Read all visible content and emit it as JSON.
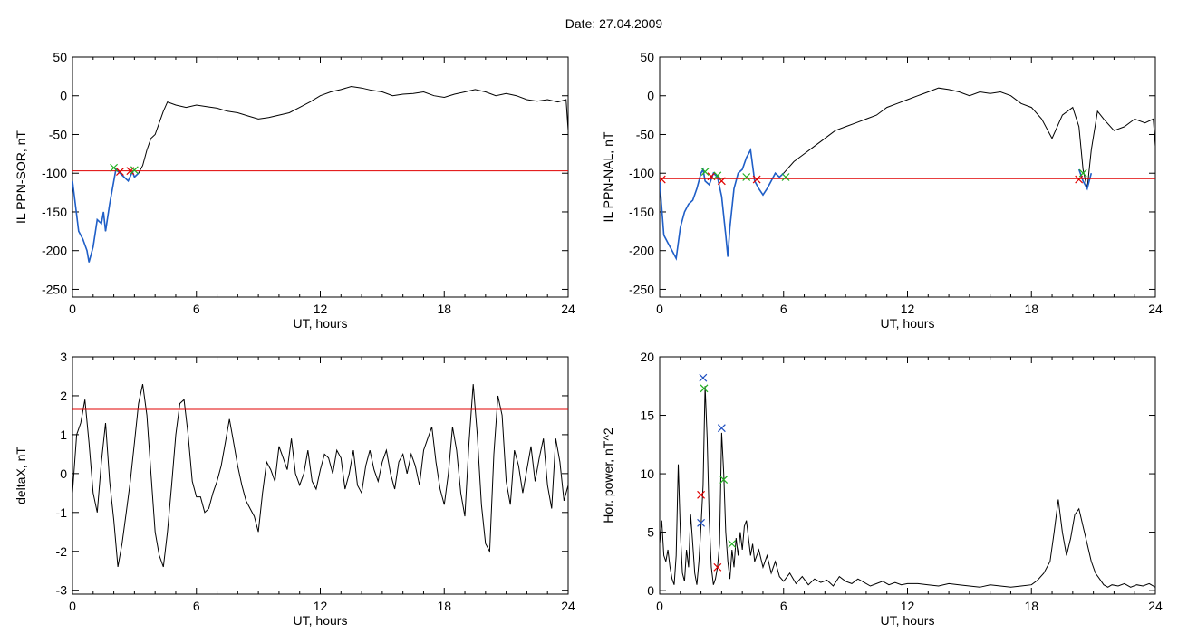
{
  "page": {
    "title": "Date:  27.04.2009"
  },
  "colors": {
    "trace": "#000000",
    "fit": "#1f5fc8",
    "threshold": "#e00000",
    "marker_red": "#e00000",
    "marker_green": "#20b020",
    "marker_blue": "#2050c0"
  },
  "chart_data": [
    {
      "type": "line",
      "title": "",
      "xlabel": "UT, hours",
      "ylabel": "IL PPN-SOR, nT",
      "xlim": [
        0,
        24
      ],
      "ylim": [
        -260,
        50
      ],
      "xticks": [
        0,
        6,
        12,
        18,
        24
      ],
      "yticks": [
        -250,
        -200,
        -150,
        -100,
        -50,
        0,
        50
      ],
      "grid": false,
      "threshold": -97,
      "series": [
        {
          "role": "trace",
          "x": [
            0,
            0.3,
            0.5,
            0.7,
            0.8,
            1.0,
            1.2,
            1.4,
            1.5,
            1.6,
            1.8,
            2.0,
            2.1,
            2.3,
            2.5,
            2.7,
            2.9,
            3.0,
            3.2,
            3.4,
            3.6,
            3.8,
            4.0,
            4.2,
            4.4,
            4.6,
            5.0,
            5.5,
            6.0,
            6.5,
            7.0,
            7.5,
            8.0,
            8.5,
            9.0,
            9.5,
            10.0,
            10.5,
            11.0,
            11.5,
            12.0,
            12.5,
            13.0,
            13.5,
            14.0,
            14.5,
            15.0,
            15.5,
            16.0,
            16.5,
            17.0,
            17.5,
            18.0,
            18.5,
            19.0,
            19.5,
            20.0,
            20.5,
            21.0,
            21.5,
            22.0,
            22.5,
            23.0,
            23.5,
            23.9,
            24
          ],
          "y": [
            -110,
            -175,
            -185,
            -200,
            -215,
            -195,
            -160,
            -165,
            -150,
            -175,
            -140,
            -110,
            -95,
            -100,
            -105,
            -110,
            -98,
            -105,
            -100,
            -90,
            -70,
            -55,
            -50,
            -35,
            -20,
            -8,
            -12,
            -15,
            -12,
            -14,
            -16,
            -20,
            -22,
            -26,
            -30,
            -28,
            -25,
            -22,
            -15,
            -8,
            0,
            5,
            8,
            12,
            10,
            7,
            5,
            0,
            2,
            3,
            5,
            0,
            -2,
            2,
            5,
            8,
            5,
            0,
            3,
            0,
            -5,
            -7,
            -5,
            -8,
            -5,
            -45
          ]
        },
        {
          "role": "fit",
          "x": [
            0,
            0.3,
            0.5,
            0.7,
            0.8,
            1.0,
            1.2,
            1.4,
            1.5,
            1.6,
            1.8,
            2.0,
            2.1,
            2.3,
            2.5,
            2.7,
            2.9,
            3.0,
            3.2
          ],
          "y": [
            -110,
            -175,
            -185,
            -200,
            -215,
            -195,
            -160,
            -165,
            -150,
            -175,
            -140,
            -110,
            -95,
            -100,
            -105,
            -110,
            -98,
            -105,
            -100
          ]
        }
      ],
      "markers": [
        {
          "x": 2.0,
          "y": -93,
          "color": "green"
        },
        {
          "x": 2.3,
          "y": -98,
          "color": "red"
        },
        {
          "x": 2.8,
          "y": -97,
          "color": "red"
        },
        {
          "x": 3.0,
          "y": -96,
          "color": "green"
        }
      ]
    },
    {
      "type": "line",
      "title": "",
      "xlabel": "UT, hours",
      "ylabel": "IL PPN-NAL, nT",
      "xlim": [
        0,
        24
      ],
      "ylim": [
        -260,
        50
      ],
      "xticks": [
        0,
        6,
        12,
        18,
        24
      ],
      "yticks": [
        -250,
        -200,
        -150,
        -100,
        -50,
        0,
        50
      ],
      "grid": false,
      "threshold": -107,
      "series": [
        {
          "role": "trace",
          "x": [
            0,
            0.2,
            0.4,
            0.6,
            0.8,
            1.0,
            1.2,
            1.4,
            1.6,
            1.8,
            2.0,
            2.1,
            2.2,
            2.4,
            2.6,
            2.8,
            3.0,
            3.2,
            3.3,
            3.4,
            3.6,
            3.8,
            4.0,
            4.2,
            4.4,
            4.6,
            4.8,
            5.0,
            5.2,
            5.4,
            5.6,
            5.8,
            6.0,
            6.5,
            7.0,
            7.5,
            8.0,
            8.5,
            9.0,
            9.5,
            10.0,
            10.5,
            11.0,
            11.5,
            12.0,
            12.5,
            13.0,
            13.5,
            14.0,
            14.5,
            15.0,
            15.5,
            16.0,
            16.5,
            17.0,
            17.5,
            18.0,
            18.5,
            19.0,
            19.5,
            20.0,
            20.3,
            20.5,
            20.7,
            20.9,
            21.2,
            21.5,
            22.0,
            22.5,
            23.0,
            23.5,
            23.9,
            24
          ],
          "y": [
            -110,
            -180,
            -190,
            -200,
            -210,
            -170,
            -150,
            -140,
            -135,
            -120,
            -100,
            -95,
            -110,
            -115,
            -100,
            -105,
            -130,
            -180,
            -208,
            -170,
            -120,
            -100,
            -95,
            -80,
            -70,
            -110,
            -120,
            -128,
            -120,
            -110,
            -100,
            -105,
            -100,
            -85,
            -75,
            -65,
            -55,
            -45,
            -40,
            -35,
            -30,
            -25,
            -15,
            -10,
            -5,
            0,
            5,
            10,
            8,
            5,
            0,
            5,
            3,
            5,
            0,
            -10,
            -15,
            -30,
            -55,
            -25,
            -15,
            -40,
            -95,
            -120,
            -70,
            -20,
            -30,
            -45,
            -40,
            -30,
            -35,
            -30,
            -65
          ]
        },
        {
          "role": "fit",
          "x": [
            0,
            0.2,
            0.4,
            0.6,
            0.8,
            1.0,
            1.2,
            1.4,
            1.6,
            1.8,
            2.0,
            2.1,
            2.2,
            2.4,
            2.6,
            2.8,
            3.0,
            3.2,
            3.3,
            3.4,
            3.6,
            3.8,
            4.0,
            4.2,
            4.4,
            4.6,
            4.8,
            5.0,
            5.2,
            5.4,
            5.6,
            5.8,
            6.0
          ],
          "y": [
            -110,
            -180,
            -190,
            -200,
            -210,
            -170,
            -150,
            -140,
            -135,
            -120,
            -100,
            -95,
            -110,
            -115,
            -100,
            -105,
            -130,
            -180,
            -208,
            -170,
            -120,
            -100,
            -95,
            -80,
            -70,
            -110,
            -120,
            -128,
            -120,
            -110,
            -100,
            -105,
            -100
          ]
        },
        {
          "role": "fit",
          "x": [
            20.3,
            20.5,
            20.7,
            20.9
          ],
          "y": [
            -95,
            -110,
            -120,
            -100
          ]
        }
      ],
      "markers": [
        {
          "x": 0.1,
          "y": -108,
          "color": "red"
        },
        {
          "x": 2.2,
          "y": -98,
          "color": "green"
        },
        {
          "x": 2.5,
          "y": -104,
          "color": "red"
        },
        {
          "x": 2.8,
          "y": -103,
          "color": "green"
        },
        {
          "x": 3.0,
          "y": -110,
          "color": "red"
        },
        {
          "x": 4.2,
          "y": -105,
          "color": "green"
        },
        {
          "x": 4.7,
          "y": -108,
          "color": "red"
        },
        {
          "x": 6.1,
          "y": -105,
          "color": "green"
        },
        {
          "x": 20.3,
          "y": -108,
          "color": "red"
        },
        {
          "x": 20.5,
          "y": -100,
          "color": "green"
        }
      ]
    },
    {
      "type": "line",
      "title": "",
      "xlabel": "UT, hours",
      "ylabel": "deltaX, nT",
      "xlim": [
        0,
        24
      ],
      "ylim": [
        -3.1,
        3
      ],
      "xticks": [
        0,
        6,
        12,
        18,
        24
      ],
      "yticks": [
        -3,
        -2,
        -1,
        0,
        1,
        2,
        3
      ],
      "grid": false,
      "threshold": 1.65,
      "series": [
        {
          "role": "trace",
          "x": [
            0,
            0.2,
            0.4,
            0.6,
            0.8,
            1.0,
            1.2,
            1.4,
            1.6,
            1.8,
            2.0,
            2.2,
            2.4,
            2.6,
            2.8,
            3.0,
            3.2,
            3.4,
            3.6,
            3.8,
            4.0,
            4.2,
            4.4,
            4.6,
            4.8,
            5.0,
            5.2,
            5.4,
            5.6,
            5.8,
            6.0,
            6.2,
            6.4,
            6.6,
            6.8,
            7.0,
            7.2,
            7.4,
            7.6,
            7.8,
            8.0,
            8.2,
            8.4,
            8.6,
            8.8,
            9.0,
            9.2,
            9.4,
            9.6,
            9.8,
            10.0,
            10.2,
            10.4,
            10.6,
            10.8,
            11.0,
            11.2,
            11.4,
            11.6,
            11.8,
            12.0,
            12.2,
            12.4,
            12.6,
            12.8,
            13.0,
            13.2,
            13.4,
            13.6,
            13.8,
            14.0,
            14.2,
            14.4,
            14.6,
            14.8,
            15.0,
            15.2,
            15.4,
            15.6,
            15.8,
            16.0,
            16.2,
            16.4,
            16.6,
            16.8,
            17.0,
            17.2,
            17.4,
            17.6,
            17.8,
            18.0,
            18.2,
            18.4,
            18.6,
            18.8,
            19.0,
            19.2,
            19.4,
            19.6,
            19.8,
            20.0,
            20.2,
            20.4,
            20.6,
            20.8,
            21.0,
            21.2,
            21.4,
            21.6,
            21.8,
            22.0,
            22.2,
            22.4,
            22.6,
            22.8,
            23.0,
            23.2,
            23.4,
            23.6,
            23.8,
            24.0
          ],
          "y": [
            -0.5,
            1.0,
            1.3,
            1.9,
            0.8,
            -0.5,
            -1.0,
            0.3,
            1.3,
            -0.2,
            -1.2,
            -2.4,
            -1.8,
            -1.0,
            -0.2,
            0.8,
            1.8,
            2.3,
            1.5,
            0.0,
            -1.5,
            -2.1,
            -2.4,
            -1.5,
            -0.3,
            1.0,
            1.8,
            1.9,
            1.0,
            -0.2,
            -0.6,
            -0.6,
            -1.0,
            -0.9,
            -0.5,
            -0.2,
            0.2,
            0.8,
            1.4,
            0.8,
            0.2,
            -0.3,
            -0.7,
            -0.9,
            -1.1,
            -1.5,
            -0.5,
            0.3,
            0.1,
            -0.2,
            0.7,
            0.4,
            0.1,
            0.9,
            0.0,
            -0.3,
            0.0,
            0.6,
            -0.2,
            -0.4,
            0.1,
            0.5,
            0.4,
            0.0,
            0.6,
            0.4,
            -0.4,
            0.0,
            0.6,
            -0.3,
            -0.5,
            0.2,
            0.6,
            0.1,
            -0.2,
            0.3,
            0.6,
            0.0,
            -0.4,
            0.3,
            0.5,
            0.0,
            0.5,
            0.2,
            -0.3,
            0.6,
            0.9,
            1.2,
            0.3,
            -0.4,
            -0.8,
            0.0,
            1.2,
            0.6,
            -0.5,
            -1.1,
            0.8,
            2.3,
            1.0,
            -0.8,
            -1.8,
            -2.0,
            0.5,
            2.0,
            1.5,
            -0.2,
            -0.8,
            0.6,
            0.2,
            -0.5,
            0.1,
            0.7,
            -0.2,
            0.4,
            0.9,
            -0.3,
            -0.9,
            0.9,
            0.3,
            -0.7,
            -0.3
          ]
        }
      ],
      "markers": []
    },
    {
      "type": "line",
      "title": "",
      "xlabel": "UT, hours",
      "ylabel": "Hor. power, nT^2",
      "xlim": [
        0,
        24
      ],
      "ylim": [
        -0.3,
        20
      ],
      "xticks": [
        0,
        6,
        12,
        18,
        24
      ],
      "yticks": [
        0,
        5,
        10,
        15,
        20
      ],
      "grid": false,
      "series": [
        {
          "role": "trace",
          "x": [
            0,
            0.1,
            0.2,
            0.3,
            0.4,
            0.5,
            0.6,
            0.7,
            0.8,
            0.9,
            1.0,
            1.1,
            1.2,
            1.3,
            1.4,
            1.5,
            1.6,
            1.7,
            1.8,
            1.9,
            2.0,
            2.1,
            2.2,
            2.3,
            2.4,
            2.5,
            2.6,
            2.7,
            2.8,
            2.9,
            3.0,
            3.1,
            3.2,
            3.3,
            3.4,
            3.5,
            3.6,
            3.7,
            3.8,
            3.9,
            4.0,
            4.1,
            4.2,
            4.3,
            4.4,
            4.5,
            4.6,
            4.8,
            5.0,
            5.2,
            5.4,
            5.6,
            5.8,
            6.0,
            6.3,
            6.6,
            6.9,
            7.2,
            7.5,
            7.8,
            8.1,
            8.4,
            8.7,
            9.0,
            9.3,
            9.6,
            9.9,
            10.2,
            10.5,
            10.8,
            11.1,
            11.4,
            11.7,
            12.0,
            12.5,
            13.0,
            13.5,
            14.0,
            14.5,
            15.0,
            15.5,
            16.0,
            16.5,
            17.0,
            17.5,
            18.0,
            18.3,
            18.6,
            18.9,
            19.1,
            19.3,
            19.5,
            19.7,
            19.9,
            20.1,
            20.3,
            20.5,
            20.7,
            20.9,
            21.1,
            21.3,
            21.5,
            21.7,
            21.9,
            22.2,
            22.5,
            22.8,
            23.1,
            23.4,
            23.7,
            24.0
          ],
          "y": [
            4.0,
            6.0,
            3.0,
            2.5,
            3.5,
            2.0,
            1.0,
            0.5,
            3.0,
            10.8,
            5.0,
            1.5,
            0.8,
            3.5,
            2.0,
            6.5,
            4.0,
            1.5,
            0.5,
            2.5,
            5.5,
            9.0,
            17.5,
            13.0,
            6.0,
            2.0,
            0.5,
            1.0,
            2.0,
            4.0,
            13.5,
            10.0,
            5.0,
            2.5,
            1.0,
            3.5,
            2.0,
            4.5,
            3.0,
            5.0,
            3.5,
            5.5,
            6.0,
            4.5,
            3.0,
            4.0,
            2.5,
            3.5,
            2.0,
            3.0,
            1.5,
            2.5,
            1.2,
            0.8,
            1.5,
            0.6,
            1.2,
            0.5,
            1.0,
            0.7,
            0.9,
            0.4,
            1.2,
            0.8,
            0.6,
            1.0,
            0.7,
            0.4,
            0.6,
            0.8,
            0.5,
            0.7,
            0.5,
            0.6,
            0.6,
            0.5,
            0.4,
            0.6,
            0.5,
            0.4,
            0.3,
            0.5,
            0.4,
            0.3,
            0.4,
            0.5,
            0.9,
            1.5,
            2.5,
            5.0,
            7.8,
            5.0,
            3.0,
            4.5,
            6.5,
            7.0,
            5.5,
            4.0,
            2.5,
            1.5,
            1.0,
            0.5,
            0.3,
            0.5,
            0.4,
            0.6,
            0.3,
            0.5,
            0.4,
            0.6,
            0.3
          ]
        }
      ],
      "markers": [
        {
          "x": 2.1,
          "y": 18.2,
          "color": "blue"
        },
        {
          "x": 2.15,
          "y": 17.3,
          "color": "green"
        },
        {
          "x": 2.0,
          "y": 8.2,
          "color": "red"
        },
        {
          "x": 2.0,
          "y": 5.8,
          "color": "blue"
        },
        {
          "x": 2.8,
          "y": 2.0,
          "color": "red"
        },
        {
          "x": 3.0,
          "y": 13.9,
          "color": "blue"
        },
        {
          "x": 3.1,
          "y": 9.5,
          "color": "green"
        },
        {
          "x": 3.5,
          "y": 4.0,
          "color": "green"
        }
      ]
    }
  ]
}
